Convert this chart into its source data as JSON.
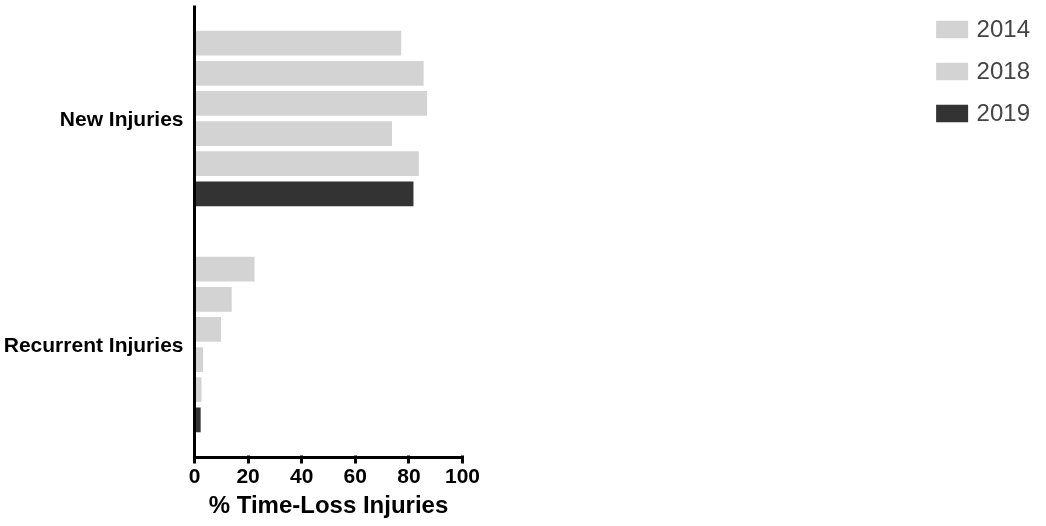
{
  "chart_data": {
    "type": "bar",
    "orientation": "horizontal",
    "xlabel": "% Time-Loss Injuries",
    "categories": [
      "New Injuries",
      "Recurrent Injuries"
    ],
    "xlim": [
      0,
      100
    ],
    "xticks": [
      0,
      20,
      40,
      60,
      80,
      100
    ],
    "grid": false,
    "legend": "top right",
    "series": [
      {
        "name": "2014",
        "color": "#d3d3d3",
        "values": [
          77.1,
          22.4
        ]
      },
      {
        "color": "#d3d3d3",
        "values": [
          85.5,
          13.9
        ]
      },
      {
        "color": "#d3d3d3",
        "values": [
          86.8,
          9.9
        ]
      },
      {
        "color": "#d3d3d3",
        "values": [
          73.7,
          3.2
        ]
      },
      {
        "name": "2018",
        "color": "#d3d3d3",
        "values": [
          83.7,
          2.6
        ]
      },
      {
        "name": "2019",
        "color": "#333333",
        "values": [
          81.7,
          2.3
        ]
      }
    ]
  }
}
